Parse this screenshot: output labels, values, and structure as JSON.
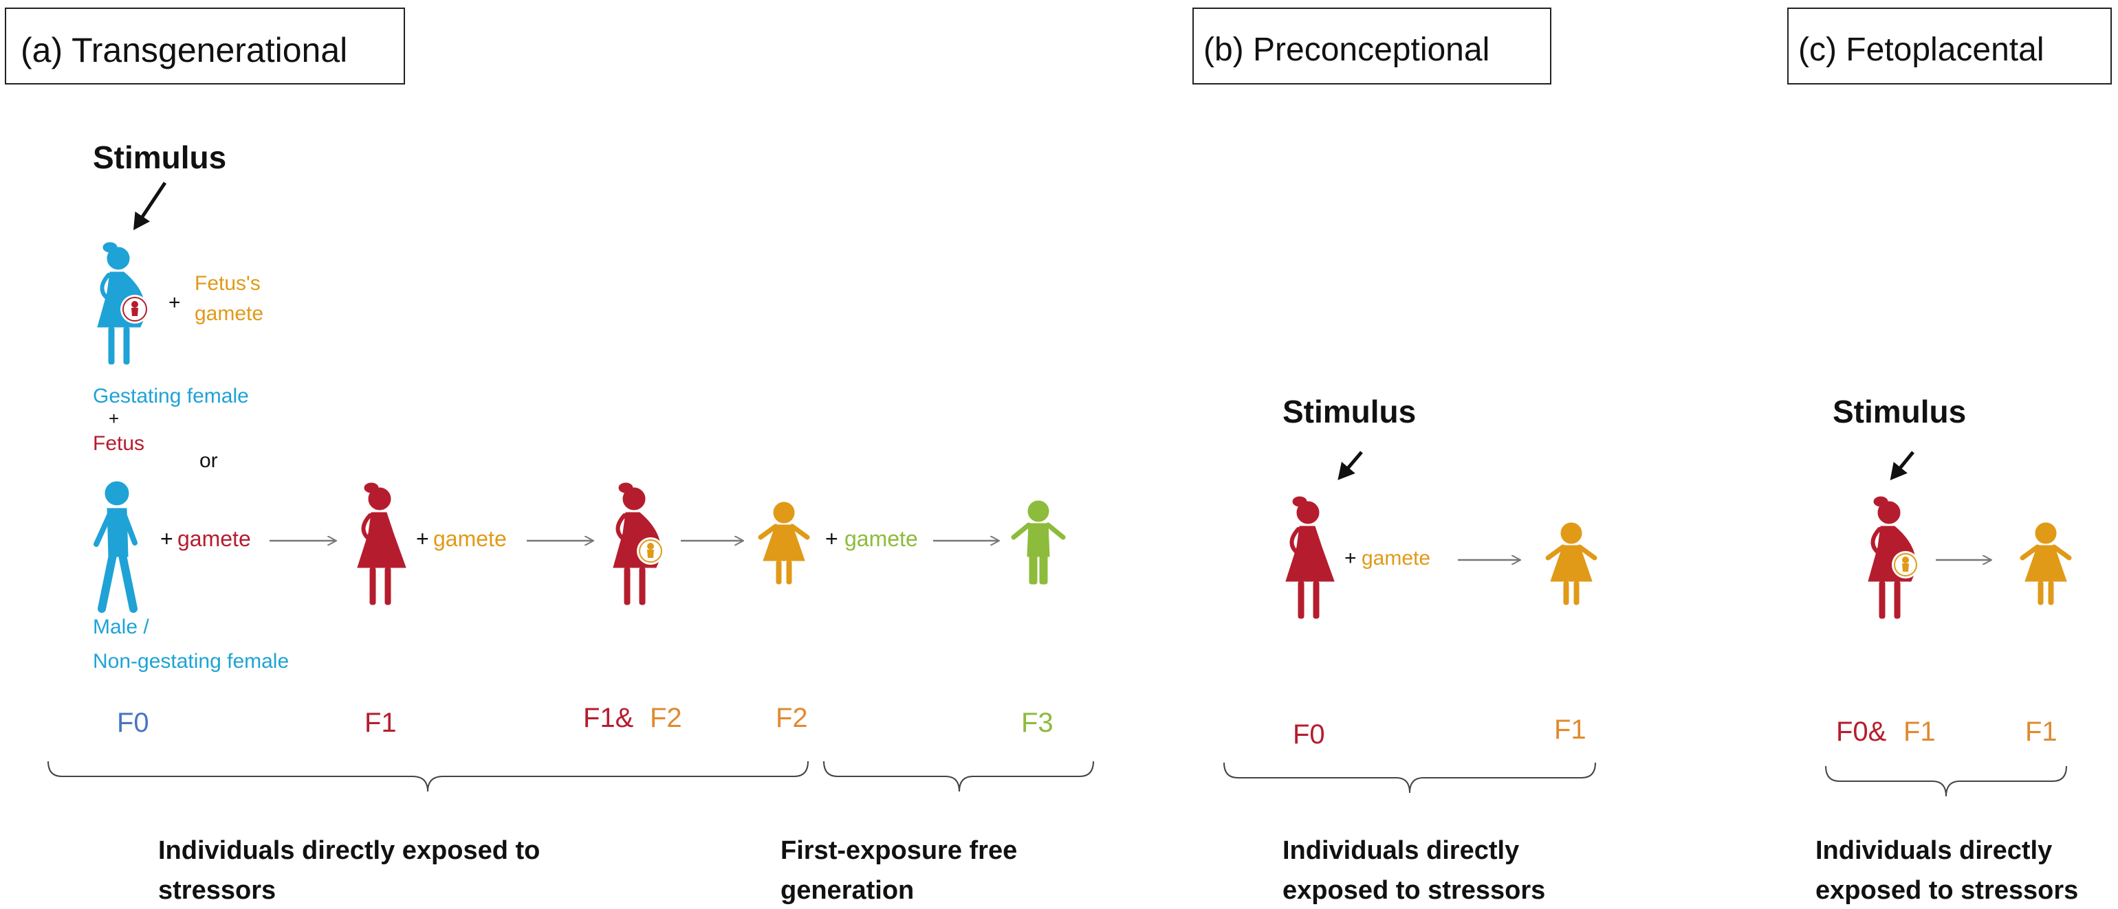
{
  "colors": {
    "blue": "#1fa2d6",
    "dark_blue": "#4a74c4",
    "red": "#b51d2e",
    "orange": "#e09a18",
    "green": "#8dbb3b",
    "black": "#111111",
    "gray": "#777777"
  },
  "panels": {
    "a": {
      "title": "(a) Transgenerational",
      "stimulus": "Stimulus",
      "plus_fetus_gamete": "+",
      "fetus_gamete_line1": "Fetus's",
      "fetus_gamete_line2": "gamete",
      "gestating_female": "Gestating female",
      "plus_small": "+",
      "fetus": "Fetus",
      "or": "or",
      "plus_gamete_1": "+",
      "gamete_1": "gamete",
      "plus_gamete_2": "+",
      "gamete_2": "gamete",
      "plus_gamete_3": "+",
      "gamete_3": "gamete",
      "male_line1": "Male /",
      "male_line2": "Non-gestating female",
      "gen_f0": "F0",
      "gen_f1": "F1",
      "gen_f1_amp": "F1&",
      "gen_f2_a": "F2",
      "gen_f2_b": "F2",
      "gen_f3": "F3",
      "caption_left_1": "Individuals directly exposed to",
      "caption_left_2": "stressors",
      "caption_right_1": "First-exposure free",
      "caption_right_2": "generation"
    },
    "b": {
      "title": "(b) Preconceptional",
      "stimulus": "Stimulus",
      "plus_gamete": "+",
      "gamete": "gamete",
      "gen_f0": "F0",
      "gen_f1": "F1",
      "caption_1": "Individuals directly",
      "caption_2": "exposed to stressors"
    },
    "c": {
      "title": "(c) Fetoplacental",
      "stimulus": "Stimulus",
      "gen_f0_amp": "F0&",
      "gen_f1_a": "F1",
      "gen_f1_b": "F1",
      "caption_1": "Individuals directly",
      "caption_2": "exposed to  stressors"
    }
  }
}
